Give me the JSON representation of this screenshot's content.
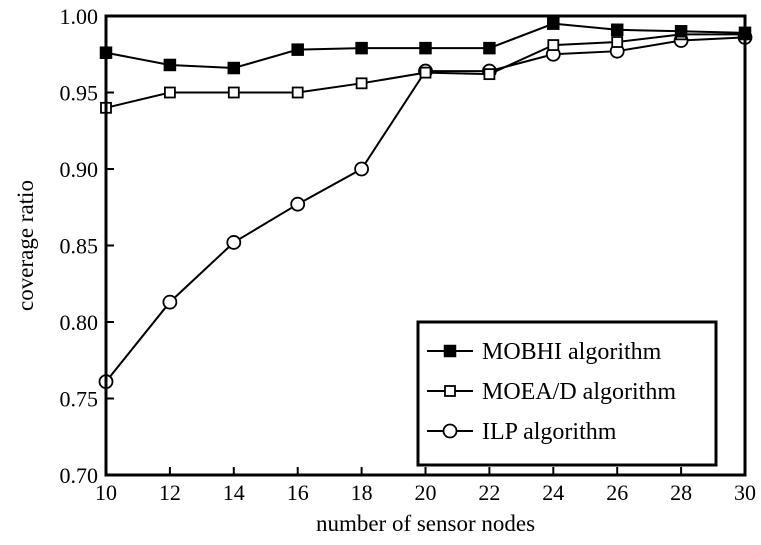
{
  "chart_data": {
    "type": "line",
    "xlabel": "number of sensor nodes",
    "ylabel": "coverage ratio",
    "xlim": [
      10,
      30
    ],
    "ylim": [
      0.7,
      1.0
    ],
    "xticks": [
      "10",
      "12",
      "14",
      "16",
      "18",
      "20",
      "22",
      "24",
      "26",
      "28",
      "30"
    ],
    "yticks": [
      "0.70",
      "0.75",
      "0.80",
      "0.85",
      "0.90",
      "0.95",
      "1.00"
    ],
    "grid": false,
    "legend_position": "bottom-right",
    "x": [
      10,
      12,
      14,
      16,
      18,
      20,
      22,
      24,
      26,
      28,
      30
    ],
    "series": [
      {
        "name": "MOBHI algorithm",
        "marker": "filled-square",
        "values": [
          0.976,
          0.968,
          0.966,
          0.978,
          0.979,
          0.979,
          0.979,
          0.995,
          0.991,
          0.99,
          0.989
        ]
      },
      {
        "name": "MOEA/D algorithm",
        "marker": "open-square",
        "values": [
          0.94,
          0.95,
          0.95,
          0.95,
          0.956,
          0.963,
          0.962,
          0.981,
          0.983,
          0.988,
          0.988
        ]
      },
      {
        "name": "ILP algorithm",
        "marker": "open-circle",
        "values": [
          0.761,
          0.813,
          0.852,
          0.877,
          0.9,
          0.964,
          0.964,
          0.975,
          0.977,
          0.984,
          0.986
        ]
      }
    ]
  }
}
